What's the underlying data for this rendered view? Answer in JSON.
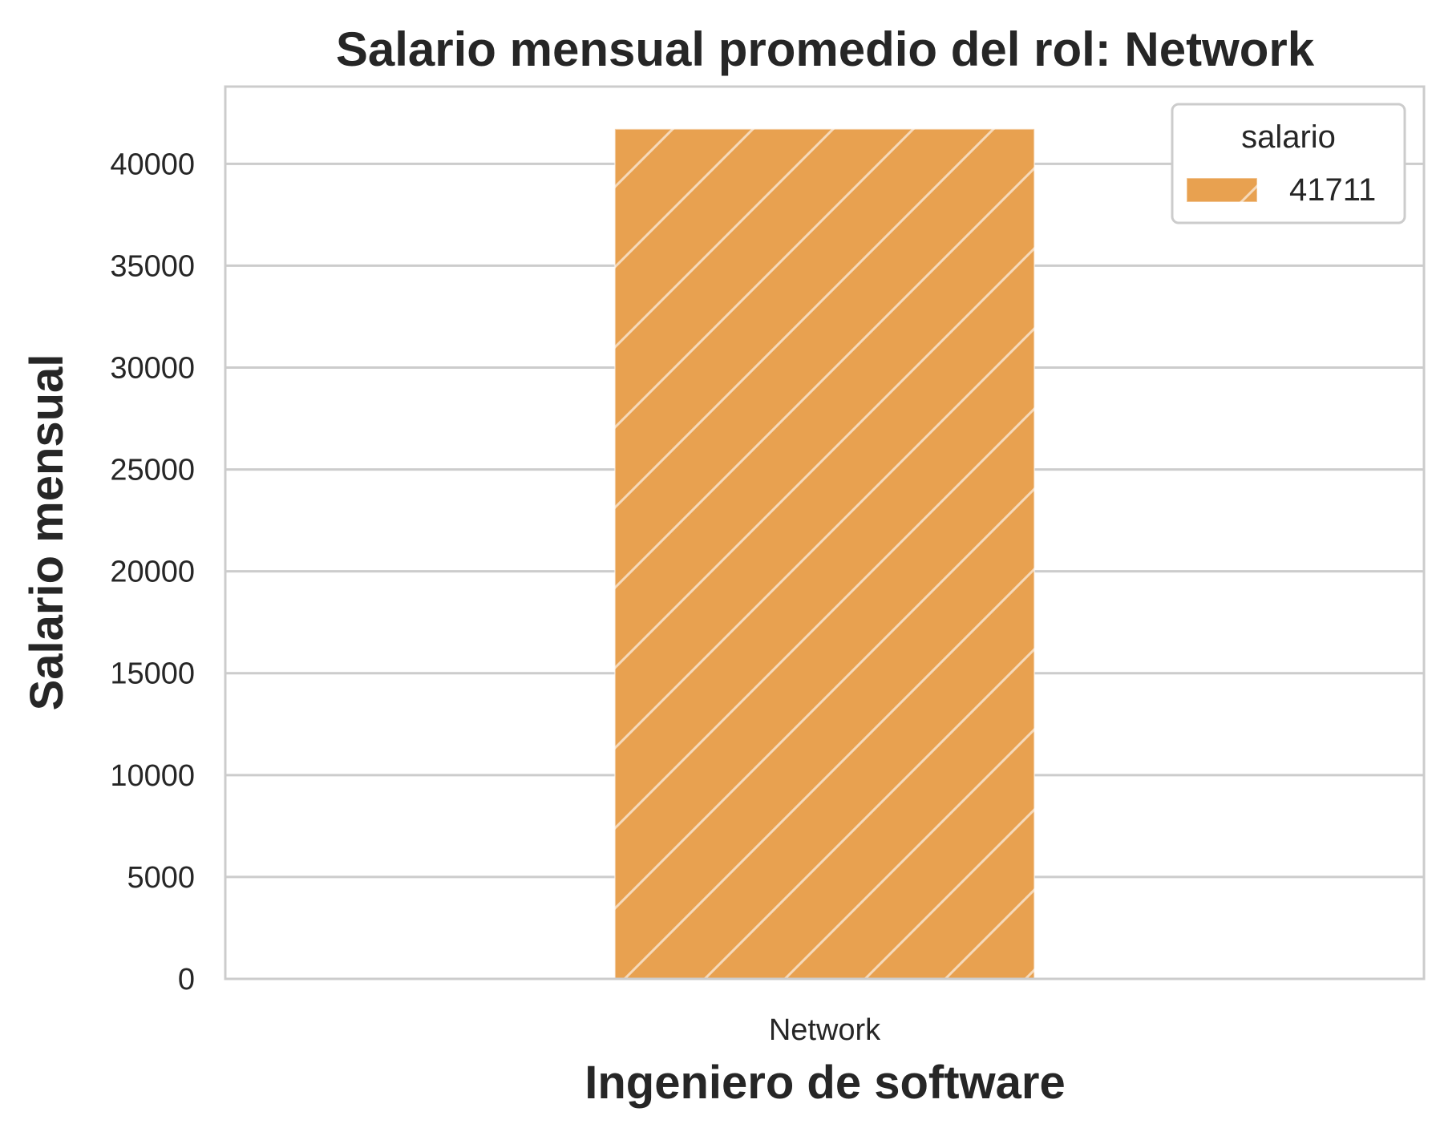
{
  "chart_data": {
    "type": "bar",
    "title": "Salario mensual promedio del rol: Network",
    "xlabel": "Ingeniero de software",
    "ylabel": "Salario mensual",
    "categories": [
      "Network"
    ],
    "series": [
      {
        "name": "41711",
        "values": [
          41711
        ],
        "color": "#e8a150"
      }
    ],
    "ylim": [
      0,
      43790
    ],
    "yticks": [
      0,
      5000,
      10000,
      15000,
      20000,
      25000,
      30000,
      35000,
      40000
    ],
    "grid": true,
    "hatch": "diagonal",
    "legend": {
      "title": "salario",
      "placement": "top-right"
    },
    "colors": {
      "bar": "#e8a150",
      "grid": "#cccccc",
      "frame": "#cccccc",
      "text": "#262626"
    }
  }
}
